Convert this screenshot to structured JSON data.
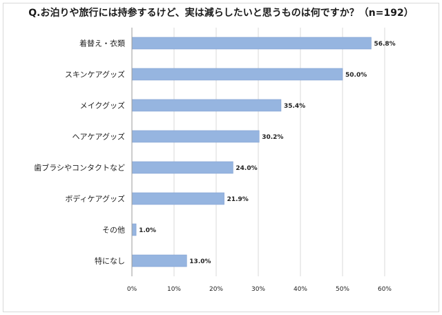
{
  "chart_data": {
    "type": "bar",
    "orientation": "horizontal",
    "title": "Q.お泊りや旅行には持参するけど、実は減らしたいと思うものは何ですか？（n=192）",
    "categories": [
      "着替え・衣類",
      "スキンケアグッズ",
      "メイクグッズ",
      "ヘアケアグッズ",
      "歯ブラシやコンタクトなど",
      "ボディケアグッズ",
      "その他",
      "特になし"
    ],
    "values": [
      56.8,
      50.0,
      35.4,
      30.2,
      24.0,
      21.9,
      1.0,
      13.0
    ],
    "value_labels": [
      "56.8%",
      "50.0%",
      "35.4%",
      "30.2%",
      "24.0%",
      "21.9%",
      "1.0%",
      "13.0%"
    ],
    "xlim": [
      0,
      60
    ],
    "xticks": [
      "0%",
      "10%",
      "20%",
      "30%",
      "40%",
      "50%",
      "60%"
    ],
    "xtick_values": [
      0,
      10,
      20,
      30,
      40,
      50,
      60
    ],
    "xlabel": "",
    "ylabel": "",
    "grid": true,
    "legend": "none",
    "colors": {
      "bar": "#96b5e0",
      "bar_edge": "#7f9fd0",
      "grid": "#d9d9d9",
      "axis": "#9a9a9a"
    }
  }
}
